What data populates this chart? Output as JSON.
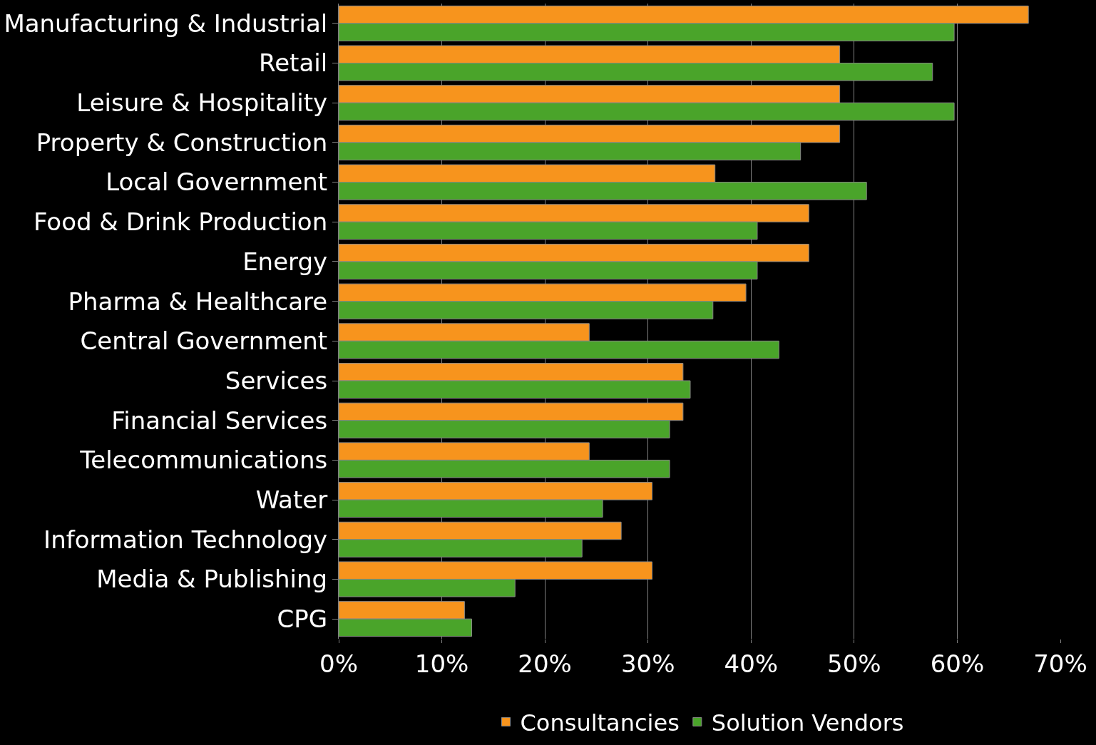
{
  "chart_data": {
    "type": "bar",
    "orientation": "horizontal",
    "categories": [
      "Manufacturing & Industrial",
      "Retail",
      "Leisure & Hospitality",
      "Property & Construction",
      "Local Government",
      "Food & Drink Production",
      "Energy",
      "Pharma & Healthcare",
      "Central Government",
      "Services",
      "Financial Services",
      "Telecommunications",
      "Water",
      "Information Technology",
      "Media & Publishing",
      "CPG"
    ],
    "series": [
      {
        "name": "Consultancies",
        "color": "#f7941d",
        "values": [
          66.9,
          48.6,
          48.6,
          48.6,
          36.5,
          45.6,
          45.6,
          39.5,
          24.3,
          33.4,
          33.4,
          24.3,
          30.4,
          27.4,
          30.4,
          12.2
        ]
      },
      {
        "name": "Solution Vendors",
        "color": "#4aa42a",
        "values": [
          59.7,
          57.6,
          59.7,
          44.8,
          51.2,
          40.6,
          40.6,
          36.3,
          42.7,
          34.1,
          32.1,
          32.1,
          25.6,
          23.6,
          17.1,
          12.9
        ]
      }
    ],
    "xlim": [
      0,
      70
    ],
    "xticks": [
      {
        "value": 0,
        "label": "0%"
      },
      {
        "value": 10,
        "label": "10%"
      },
      {
        "value": 20,
        "label": "20%"
      },
      {
        "value": 30,
        "label": "30%"
      },
      {
        "value": 40,
        "label": "40%"
      },
      {
        "value": 50,
        "label": "50%"
      },
      {
        "value": 60,
        "label": "60%"
      },
      {
        "value": 70,
        "label": "70%"
      }
    ],
    "grid": "x",
    "legend": "bottom"
  }
}
